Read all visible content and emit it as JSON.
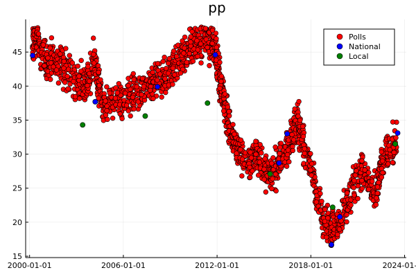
{
  "chart_data": {
    "type": "scatter",
    "title": "pp",
    "xlabel": "",
    "ylabel": "",
    "x_axis_type": "date",
    "xlim": [
      "1999-10-01",
      "2024-02-10"
    ],
    "ylim": [
      14.8,
      49.8
    ],
    "x_ticks": [
      "2000-01-01",
      "2006-01-01",
      "2012-01-01",
      "2018-01-01",
      "2024-01-01"
    ],
    "y_ticks": [
      15,
      20,
      25,
      30,
      35,
      40,
      45
    ],
    "grid": true,
    "legend_position": "top-right",
    "series_style": [
      {
        "name": "Polls",
        "color": "#ff0000"
      },
      {
        "name": "National",
        "color": "#0000ff"
      },
      {
        "name": "Local",
        "color": "#008000"
      }
    ],
    "polls_trend": [
      [
        "2000-03-01",
        45.5
      ],
      [
        "2000-06-01",
        47.0
      ],
      [
        "2000-10-01",
        45.0
      ],
      [
        "2001-03-01",
        43.5
      ],
      [
        "2001-09-01",
        43.5
      ],
      [
        "2002-03-01",
        43.0
      ],
      [
        "2002-09-01",
        41.5
      ],
      [
        "2003-03-01",
        40.5
      ],
      [
        "2003-09-01",
        40.0
      ],
      [
        "2004-02-01",
        44.0
      ],
      [
        "2004-06-01",
        40.0
      ],
      [
        "2004-10-01",
        37.5
      ],
      [
        "2005-06-01",
        37.5
      ],
      [
        "2006-01-01",
        38.0
      ],
      [
        "2006-08-01",
        39.0
      ],
      [
        "2007-03-01",
        39.0
      ],
      [
        "2007-09-01",
        39.5
      ],
      [
        "2008-03-01",
        40.5
      ],
      [
        "2008-09-01",
        41.0
      ],
      [
        "2009-03-01",
        42.5
      ],
      [
        "2009-09-01",
        44.0
      ],
      [
        "2010-03-01",
        45.5
      ],
      [
        "2010-09-01",
        46.5
      ],
      [
        "2011-03-01",
        46.5
      ],
      [
        "2011-09-01",
        46.5
      ],
      [
        "2011-12-01",
        45.5
      ],
      [
        "2012-03-01",
        41.0
      ],
      [
        "2012-06-01",
        38.0
      ],
      [
        "2012-09-01",
        35.0
      ],
      [
        "2013-01-01",
        32.5
      ],
      [
        "2013-06-01",
        30.0
      ],
      [
        "2014-01-01",
        28.5
      ],
      [
        "2014-06-01",
        30.0
      ],
      [
        "2015-01-01",
        28.0
      ],
      [
        "2015-06-01",
        27.0
      ],
      [
        "2015-12-01",
        28.5
      ],
      [
        "2016-06-01",
        30.5
      ],
      [
        "2016-10-01",
        33.0
      ],
      [
        "2017-03-01",
        35.0
      ],
      [
        "2017-06-01",
        32.0
      ],
      [
        "2017-12-01",
        29.0
      ],
      [
        "2018-05-01",
        24.5
      ],
      [
        "2018-10-01",
        20.5
      ],
      [
        "2019-04-01",
        19.0
      ],
      [
        "2019-09-01",
        20.0
      ],
      [
        "2020-03-01",
        21.5
      ],
      [
        "2020-09-01",
        25.0
      ],
      [
        "2021-03-01",
        28.0
      ],
      [
        "2021-09-01",
        26.0
      ],
      [
        "2022-03-01",
        23.5
      ],
      [
        "2022-07-01",
        28.0
      ],
      [
        "2023-01-01",
        31.0
      ],
      [
        "2023-07-01",
        32.0
      ]
    ],
    "series": [
      {
        "name": "National",
        "points": [
          [
            "2000-03-12",
            44.5
          ],
          [
            "2004-03-14",
            37.7
          ],
          [
            "2008-03-09",
            39.9
          ],
          [
            "2011-11-20",
            44.6
          ],
          [
            "2015-12-20",
            28.7
          ],
          [
            "2016-06-26",
            33.0
          ],
          [
            "2019-04-28",
            16.7
          ],
          [
            "2019-11-10",
            20.8
          ],
          [
            "2023-07-23",
            33.1
          ]
        ]
      },
      {
        "name": "Local",
        "points": [
          [
            "2003-05-25",
            34.3
          ],
          [
            "2007-05-27",
            35.6
          ],
          [
            "2011-05-22",
            37.5
          ],
          [
            "2015-05-24",
            27.1
          ],
          [
            "2019-05-26",
            22.2
          ],
          [
            "2023-05-28",
            31.5
          ]
        ]
      }
    ]
  }
}
